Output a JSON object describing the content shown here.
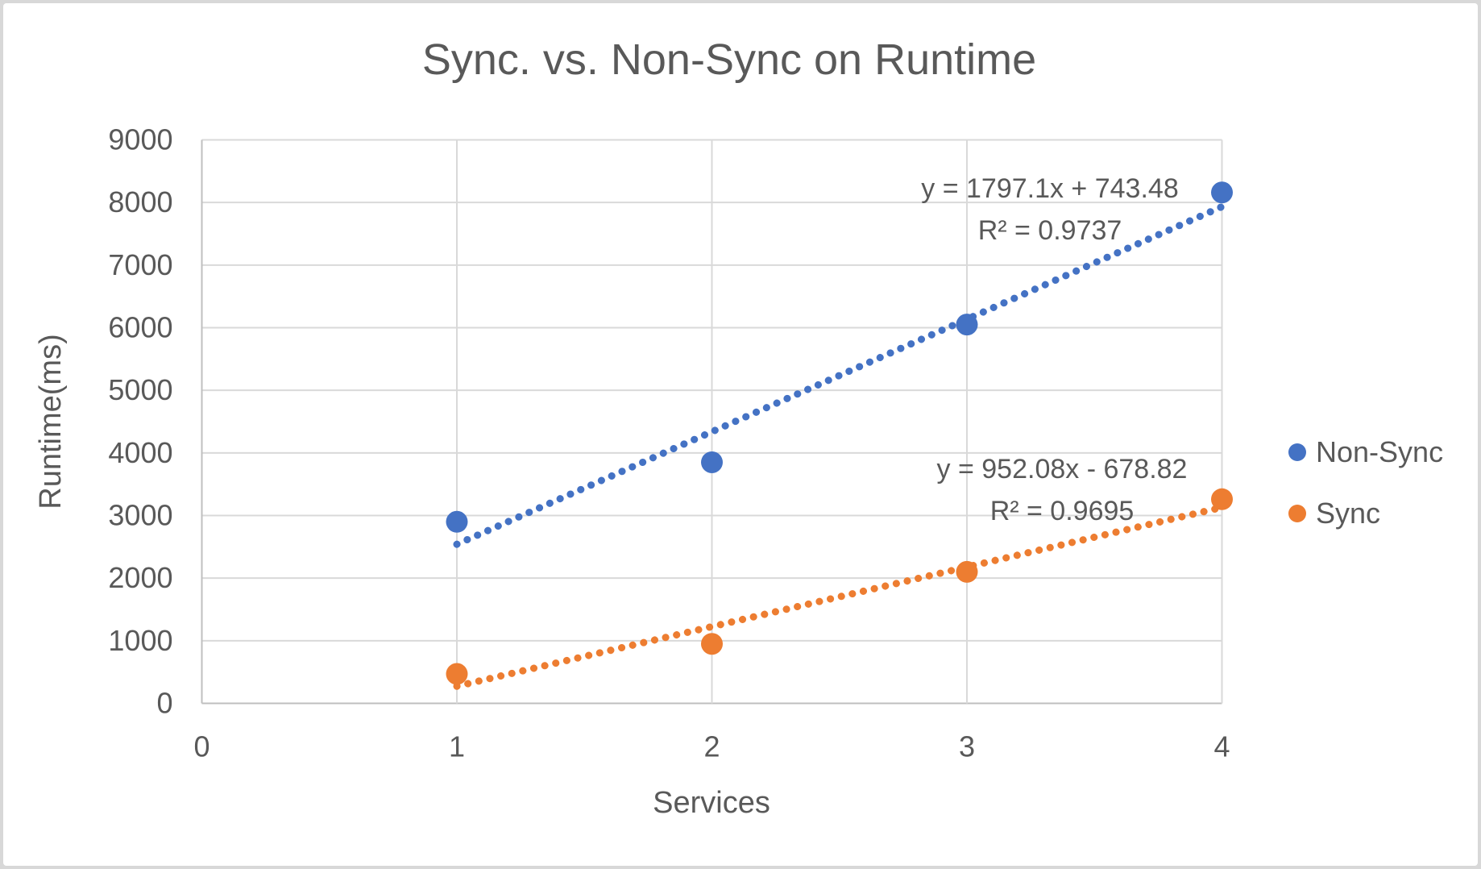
{
  "chart_data": {
    "type": "scatter",
    "title": "Sync. vs. Non-Sync on  Runtime",
    "xlabel": "Services",
    "ylabel": "Runtime(ms)",
    "xlim": [
      0,
      4
    ],
    "ylim": [
      0,
      9000
    ],
    "xticks": [
      0,
      1,
      2,
      3,
      4
    ],
    "yticks": [
      0,
      1000,
      2000,
      3000,
      4000,
      5000,
      6000,
      7000,
      8000,
      9000
    ],
    "grid": true,
    "legend_position": "right",
    "series": [
      {
        "name": "Non-Sync",
        "color": "#4472c4",
        "x": [
          1,
          2,
          3,
          4
        ],
        "values": [
          2900,
          3850,
          6050,
          8160
        ],
        "trendline": {
          "slope": 1797.1,
          "intercept": 743.48,
          "x_range": [
            1,
            4
          ],
          "equation": "y = 1797.1x + 743.48",
          "r_squared": "R² = 0.9737"
        }
      },
      {
        "name": "Sync",
        "color": "#ed7d31",
        "x": [
          1,
          2,
          3,
          4
        ],
        "values": [
          470,
          950,
          2100,
          3260
        ],
        "trendline": {
          "slope": 952.08,
          "intercept": -678.82,
          "x_range": [
            1,
            4
          ],
          "equation": "y = 952.08x - 678.82",
          "r_squared": "R² = 0.9695"
        }
      }
    ]
  },
  "colors": {
    "text": "#595959",
    "gridline": "#d9d9d9",
    "axis_line": "#bfbfbf",
    "background": "#ffffff",
    "frame": "#d8d8d8"
  }
}
